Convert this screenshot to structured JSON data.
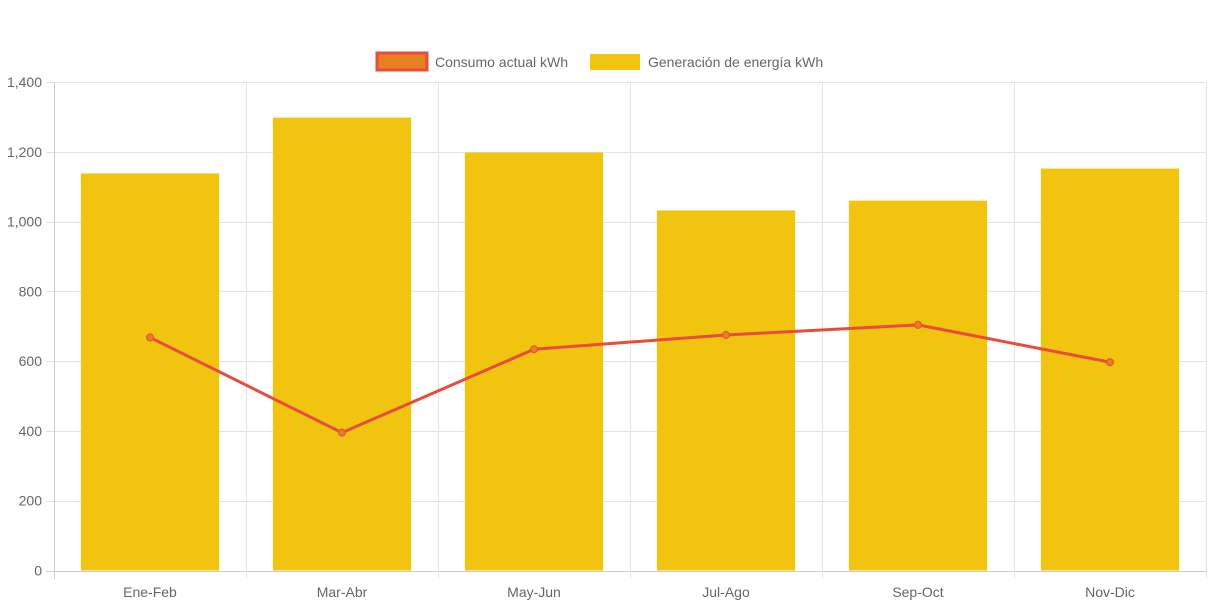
{
  "chart_data": {
    "type": "bar",
    "title": "",
    "xlabel": "",
    "ylabel": "",
    "categories": [
      "Ene-Feb",
      "Mar-Abr",
      "May-Jun",
      "Jul-Ago",
      "Sep-Oct",
      "Nov-Dic"
    ],
    "ylim": [
      0,
      1400
    ],
    "yticks": [
      0,
      200,
      400,
      600,
      800,
      1000,
      1200,
      1400
    ],
    "ytick_labels": [
      "0",
      "200",
      "400",
      "600",
      "800",
      "1,000",
      "1,200",
      "1,400"
    ],
    "grid": true,
    "legend_position": "top-center",
    "series": [
      {
        "name": "Consumo actual kWh",
        "type": "line",
        "color": "#e74c3c",
        "point_color": "#e67e22",
        "values": [
          668,
          395,
          634,
          675,
          704,
          597
        ]
      },
      {
        "name": "Generación de energía kWh",
        "type": "bar",
        "color": "#f1c40f",
        "values": [
          1138,
          1298,
          1198,
          1032,
          1060,
          1152
        ]
      }
    ]
  }
}
